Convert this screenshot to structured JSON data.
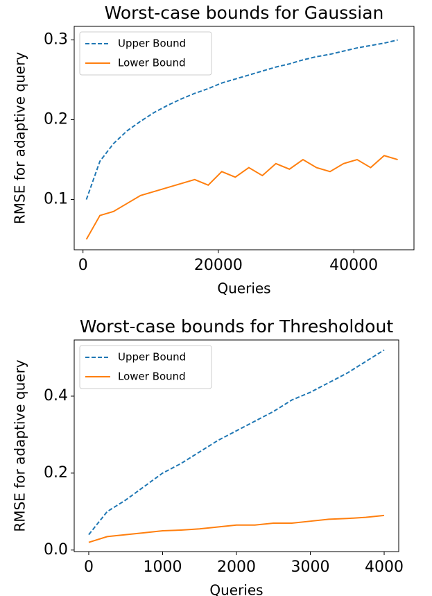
{
  "chart_data": [
    {
      "type": "line",
      "title": "Worst-case bounds for Gaussian",
      "xlabel": "Queries",
      "ylabel": "RMSE for adaptive query",
      "x": [
        500,
        2500,
        4500,
        6500,
        8500,
        10500,
        12500,
        14500,
        16500,
        18500,
        20500,
        22500,
        24500,
        26500,
        28500,
        30500,
        32500,
        34500,
        36500,
        38500,
        40500,
        42500,
        44500,
        46500
      ],
      "series": [
        {
          "name": "Upper Bound",
          "color": "#1f77b4",
          "dash": true,
          "values": [
            0.1,
            0.148,
            0.17,
            0.186,
            0.198,
            0.209,
            0.218,
            0.226,
            0.233,
            0.239,
            0.246,
            0.251,
            0.256,
            0.261,
            0.266,
            0.27,
            0.275,
            0.279,
            0.282,
            0.286,
            0.29,
            0.293,
            0.296,
            0.3
          ]
        },
        {
          "name": "Lower Bound",
          "color": "#ff7f0e",
          "dash": false,
          "values": [
            0.05,
            0.08,
            0.085,
            0.095,
            0.105,
            0.11,
            0.115,
            0.12,
            0.125,
            0.118,
            0.135,
            0.128,
            0.14,
            0.13,
            0.145,
            0.138,
            0.15,
            0.14,
            0.135,
            0.145,
            0.15,
            0.14,
            0.155,
            0.15
          ]
        }
      ],
      "xlim": [
        -1300,
        48900
      ],
      "ylim": [
        0.037,
        0.317
      ],
      "xticks": [
        0,
        20000,
        40000
      ],
      "yticks": [
        0.1,
        0.2,
        0.3
      ],
      "legend": "upper left"
    },
    {
      "type": "line",
      "title": "Worst-case bounds for Thresholdout",
      "xlabel": "Queries",
      "ylabel": "RMSE for adaptive query",
      "x": [
        0,
        250,
        500,
        750,
        1000,
        1250,
        1500,
        1750,
        2000,
        2250,
        2500,
        2750,
        3000,
        3250,
        3500,
        3750,
        4000
      ],
      "series": [
        {
          "name": "Upper Bound",
          "color": "#1f77b4",
          "dash": true,
          "values": [
            0.04,
            0.1,
            0.13,
            0.165,
            0.2,
            0.225,
            0.255,
            0.285,
            0.31,
            0.335,
            0.36,
            0.39,
            0.41,
            0.435,
            0.46,
            0.49,
            0.52
          ]
        },
        {
          "name": "Lower Bound",
          "color": "#ff7f0e",
          "dash": false,
          "values": [
            0.02,
            0.035,
            0.04,
            0.045,
            0.05,
            0.052,
            0.055,
            0.06,
            0.065,
            0.065,
            0.07,
            0.07,
            0.075,
            0.08,
            0.082,
            0.085,
            0.09
          ]
        }
      ],
      "xlim": [
        -197,
        4197
      ],
      "ylim": [
        -0.004,
        0.546
      ],
      "xticks": [
        0,
        1000,
        2000,
        3000,
        4000
      ],
      "yticks": [
        {
          "value": 0,
          "label": "0.0"
        },
        0.2,
        0.4
      ],
      "legend": "upper left"
    }
  ]
}
